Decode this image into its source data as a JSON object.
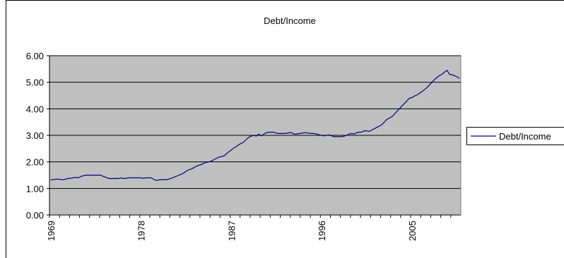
{
  "chart_data": {
    "type": "line",
    "title": "Debt/Income",
    "categories": [
      "1969",
      null,
      null,
      null,
      null,
      null,
      null,
      null,
      null,
      null,
      null,
      null,
      null,
      null,
      null,
      null,
      null,
      null,
      null,
      null,
      null,
      null,
      null,
      null,
      null,
      null,
      null,
      null,
      null,
      null,
      null,
      null,
      null,
      null,
      null,
      null,
      "1978",
      null,
      null,
      null,
      null,
      null,
      null,
      null,
      null,
      null,
      null,
      null,
      null,
      null,
      null,
      null,
      null,
      null,
      null,
      null,
      null,
      null,
      null,
      null,
      null,
      null,
      null,
      null,
      null,
      null,
      null,
      null,
      null,
      null,
      null,
      null,
      "1987",
      null,
      null,
      null,
      null,
      null,
      null,
      null,
      null,
      null,
      null,
      null,
      null,
      null,
      null,
      null,
      null,
      null,
      null,
      null,
      null,
      null,
      null,
      null,
      null,
      null,
      null,
      null,
      null,
      null,
      null,
      null,
      null,
      null,
      null,
      null,
      "1996",
      null,
      null,
      null,
      null,
      null,
      null,
      null,
      null,
      null,
      null,
      null,
      null,
      null,
      null,
      null,
      null,
      null,
      null,
      null,
      null,
      null,
      null,
      null,
      null,
      null,
      null,
      null,
      null,
      null,
      null,
      null,
      null,
      null,
      null,
      null,
      "2005",
      null,
      null,
      null,
      null,
      null,
      null,
      null,
      null,
      null,
      null,
      null,
      null,
      null,
      null,
      null,
      null,
      null,
      null,
      null
    ],
    "series": [
      {
        "name": "Debt/Income",
        "color": "#000080",
        "values": [
          1.33,
          1.33,
          1.35,
          1.35,
          1.33,
          1.33,
          1.35,
          1.38,
          1.38,
          1.4,
          1.42,
          1.4,
          1.45,
          1.48,
          1.5,
          1.5,
          1.5,
          1.5,
          1.5,
          1.5,
          1.5,
          1.45,
          1.42,
          1.38,
          1.37,
          1.37,
          1.38,
          1.37,
          1.4,
          1.37,
          1.38,
          1.4,
          1.4,
          1.4,
          1.4,
          1.4,
          1.4,
          1.38,
          1.4,
          1.4,
          1.4,
          1.35,
          1.3,
          1.32,
          1.33,
          1.33,
          1.33,
          1.35,
          1.38,
          1.42,
          1.45,
          1.5,
          1.53,
          1.58,
          1.65,
          1.7,
          1.73,
          1.78,
          1.83,
          1.87,
          1.9,
          1.95,
          1.98,
          2.0,
          2.03,
          2.08,
          2.13,
          2.18,
          2.2,
          2.22,
          2.3,
          2.38,
          2.45,
          2.52,
          2.58,
          2.65,
          2.7,
          2.75,
          2.85,
          2.93,
          2.97,
          3.0,
          2.97,
          3.05,
          2.98,
          3.05,
          3.1,
          3.12,
          3.12,
          3.12,
          3.08,
          3.07,
          3.07,
          3.07,
          3.08,
          3.1,
          3.1,
          3.05,
          3.05,
          3.07,
          3.08,
          3.1,
          3.1,
          3.08,
          3.07,
          3.07,
          3.05,
          3.02,
          3.0,
          2.98,
          3.0,
          3.02,
          2.98,
          2.95,
          2.95,
          2.95,
          2.95,
          2.97,
          3.0,
          3.05,
          3.07,
          3.05,
          3.1,
          3.12,
          3.12,
          3.17,
          3.17,
          3.15,
          3.2,
          3.25,
          3.3,
          3.35,
          3.4,
          3.5,
          3.6,
          3.65,
          3.7,
          3.8,
          3.9,
          4.0,
          4.1,
          4.2,
          4.3,
          4.4,
          4.42,
          4.48,
          4.52,
          4.58,
          4.65,
          4.72,
          4.8,
          4.9,
          5.0,
          5.1,
          5.18,
          5.25,
          5.3,
          5.38,
          5.45,
          5.3,
          5.28,
          5.25,
          5.2,
          5.15
        ]
      }
    ],
    "ylim": [
      0,
      6
    ],
    "yticks": [
      {
        "value": 0,
        "label": "0.00"
      },
      {
        "value": 1,
        "label": "1.00"
      },
      {
        "value": 2,
        "label": "2.00"
      },
      {
        "value": 3,
        "label": "3.00"
      },
      {
        "value": 4,
        "label": "4.00"
      },
      {
        "value": 5,
        "label": "5.00"
      },
      {
        "value": 6,
        "label": "6.00"
      }
    ],
    "grid": true,
    "legend": "right",
    "plot_background": "#c0c0c0"
  }
}
